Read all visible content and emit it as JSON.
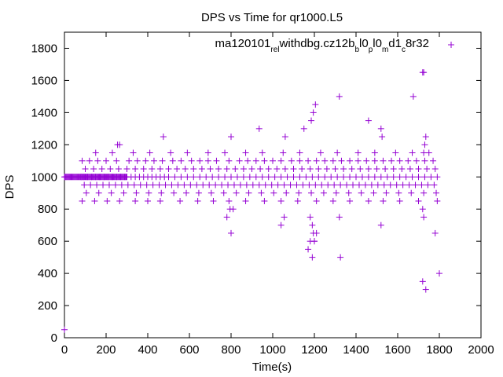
{
  "chart_data": {
    "type": "scatter",
    "title": "DPS vs Time for qr1000.L5",
    "xlabel": "Time(s)",
    "ylabel": "DPS",
    "xlim": [
      0,
      2000
    ],
    "ylim": [
      0,
      1900
    ],
    "xticks": [
      0,
      200,
      400,
      600,
      800,
      1000,
      1200,
      1400,
      1600,
      1800,
      2000
    ],
    "yticks": [
      0,
      200,
      400,
      600,
      800,
      1000,
      1200,
      1400,
      1600,
      1800
    ],
    "grid": false,
    "marker": "+",
    "color": "#9400d3",
    "legend": {
      "position": "top-right",
      "parts": [
        {
          "text": "ma120101",
          "sub": false
        },
        {
          "text": "rel",
          "sub": true
        },
        {
          "text": "withdbg.cz12b",
          "sub": false
        },
        {
          "text": "b",
          "sub": true
        },
        {
          "text": "l0",
          "sub": false
        },
        {
          "text": "p",
          "sub": true
        },
        {
          "text": "l0",
          "sub": false
        },
        {
          "text": "m",
          "sub": true
        },
        {
          "text": "d1",
          "sub": false
        },
        {
          "text": "c",
          "sub": true
        },
        {
          "text": "8r32",
          "sub": false
        }
      ]
    },
    "series": [
      {
        "name": "ma120101_rel_withdbg.cz12b_b_l0_p_l0_m_d1_c_8r32",
        "x": [
          0,
          4,
          8,
          12,
          16,
          20,
          24,
          28,
          32,
          36,
          40,
          44,
          48,
          52,
          56,
          60,
          64,
          68,
          72,
          76,
          80,
          84,
          88,
          92,
          96,
          100,
          104,
          108,
          112,
          116,
          120,
          124,
          128,
          132,
          136,
          140,
          144,
          148,
          152,
          156,
          160,
          164,
          168,
          172,
          176,
          180,
          184,
          188,
          192,
          196,
          200,
          204,
          208,
          212,
          216,
          220,
          224,
          228,
          232,
          236,
          240,
          244,
          248,
          252,
          256,
          260,
          264,
          268,
          272,
          276,
          280,
          284,
          288,
          292,
          296,
          300,
          80,
          90,
          110,
          130,
          150,
          170,
          190,
          210,
          230,
          250,
          270,
          290,
          320,
          340,
          360,
          380,
          400,
          420,
          440,
          460,
          480,
          500,
          530,
          560,
          590,
          620,
          650,
          680,
          710,
          740,
          770,
          800,
          830,
          860,
          890,
          920,
          950,
          980,
          1010,
          1040,
          1070,
          1100,
          1130,
          1160,
          1190,
          1220,
          1250,
          1280,
          1310,
          1340,
          1370,
          1400,
          1430,
          1460,
          1490,
          1520,
          1550,
          1580,
          1610,
          1640,
          1670,
          1700,
          1730,
          1760,
          1790,
          95,
          125,
          155,
          185,
          215,
          245,
          275,
          305,
          335,
          365,
          395,
          425,
          455,
          485,
          515,
          545,
          575,
          605,
          635,
          665,
          695,
          725,
          755,
          785,
          815,
          845,
          875,
          905,
          935,
          965,
          995,
          1025,
          1055,
          1085,
          1115,
          1145,
          1175,
          1205,
          1235,
          1265,
          1295,
          1325,
          1355,
          1385,
          1415,
          1445,
          1475,
          1505,
          1535,
          1565,
          1595,
          1625,
          1655,
          1685,
          1715,
          1745,
          1775,
          100,
          140,
          180,
          220,
          260,
          300,
          340,
          380,
          420,
          460,
          500,
          540,
          580,
          620,
          660,
          700,
          740,
          780,
          820,
          860,
          900,
          940,
          980,
          1020,
          1060,
          1100,
          1140,
          1180,
          1220,
          1260,
          1300,
          1340,
          1380,
          1420,
          1460,
          1500,
          1540,
          1580,
          1620,
          1660,
          1700,
          1740,
          1780,
          105,
          165,
          225,
          285,
          345,
          405,
          465,
          525,
          585,
          645,
          705,
          765,
          825,
          885,
          945,
          1005,
          1065,
          1125,
          1185,
          1245,
          1305,
          1365,
          1425,
          1485,
          1545,
          1605,
          1665,
          1725,
          1785,
          85,
          120,
          160,
          200,
          250,
          310,
          350,
          390,
          430,
          470,
          520,
          560,
          610,
          650,
          690,
          730,
          790,
          840,
          880,
          920,
          960,
          1000,
          1040,
          1090,
          1130,
          1170,
          1210,
          1250,
          1290,
          1330,
          1370,
          1410,
          1450,
          1490,
          1530,
          1570,
          1610,
          1650,
          1690,
          1730,
          1770,
          150,
          230,
          330,
          410,
          510,
          590,
          690,
          770,
          870,
          950,
          1050,
          1130,
          1230,
          1310,
          1410,
          1490,
          1590,
          1670,
          1750,
          85,
          145,
          205,
          265,
          340,
          400,
          460,
          555,
          640,
          715,
          790,
          870,
          960,
          1040,
          1120,
          1210,
          1290,
          1370,
          1460,
          1530,
          1610,
          1700,
          1790,
          255,
          265,
          475,
          800,
          935,
          1060,
          1150,
          1185,
          1195,
          1205,
          1320,
          1460,
          1520,
          1525,
          1730,
          1735,
          1725,
          795,
          810,
          1040,
          1180,
          1190,
          1210,
          1200,
          1320,
          1675,
          1720,
          1725,
          780,
          800,
          1055,
          1170,
          1180,
          1190,
          1195,
          1200,
          1325,
          1520,
          1720,
          1735,
          1780,
          0,
          1720,
          1725,
          1800
        ],
        "y": [
          1000,
          1000,
          1000,
          1000,
          1000,
          1000,
          1000,
          1000,
          1000,
          1000,
          1000,
          1000,
          1000,
          1000,
          1000,
          1000,
          1000,
          1000,
          1000,
          1000,
          1000,
          1000,
          1000,
          1000,
          1000,
          1000,
          1000,
          1000,
          1000,
          1000,
          1000,
          1000,
          1000,
          1000,
          1000,
          1000,
          1000,
          1000,
          1000,
          1000,
          1000,
          1000,
          1000,
          1000,
          1000,
          1000,
          1000,
          1000,
          1000,
          1000,
          1000,
          1000,
          1000,
          1000,
          1000,
          1000,
          1000,
          1000,
          1000,
          1000,
          1000,
          1000,
          1000,
          1000,
          1000,
          1000,
          1000,
          1000,
          1000,
          1000,
          1000,
          1000,
          1000,
          1000,
          1000,
          1000,
          1000,
          1000,
          1000,
          1000,
          1000,
          1000,
          1000,
          1000,
          1000,
          1000,
          1000,
          1000,
          1000,
          1000,
          1000,
          1000,
          1000,
          1000,
          1000,
          1000,
          1000,
          1000,
          1000,
          1000,
          1000,
          1000,
          1000,
          1000,
          1000,
          1000,
          1000,
          1000,
          1000,
          1000,
          1000,
          1000,
          1000,
          1000,
          1000,
          1000,
          1000,
          1000,
          1000,
          1000,
          1000,
          1000,
          1000,
          1000,
          1000,
          1000,
          1000,
          1000,
          1000,
          1000,
          1000,
          1000,
          1000,
          1000,
          1000,
          1000,
          1000,
          1000,
          1000,
          1000,
          1000,
          950,
          950,
          950,
          950,
          950,
          950,
          950,
          950,
          950,
          950,
          950,
          950,
          950,
          950,
          950,
          950,
          950,
          950,
          950,
          950,
          950,
          950,
          950,
          950,
          950,
          950,
          950,
          950,
          950,
          950,
          950,
          950,
          950,
          950,
          950,
          950,
          950,
          950,
          950,
          950,
          950,
          950,
          950,
          950,
          950,
          950,
          950,
          950,
          950,
          950,
          950,
          950,
          950,
          950,
          950,
          950,
          950,
          1050,
          1050,
          1050,
          1050,
          1050,
          1050,
          1050,
          1050,
          1050,
          1050,
          1050,
          1050,
          1050,
          1050,
          1050,
          1050,
          1050,
          1050,
          1050,
          1050,
          1050,
          1050,
          1050,
          1050,
          1050,
          1050,
          1050,
          1050,
          1050,
          1050,
          1050,
          1050,
          1050,
          1050,
          1050,
          1050,
          1050,
          1050,
          1050,
          1050,
          1050,
          1050,
          1050,
          900,
          900,
          900,
          900,
          900,
          900,
          900,
          900,
          900,
          900,
          900,
          900,
          900,
          900,
          900,
          900,
          900,
          900,
          900,
          900,
          900,
          900,
          900,
          900,
          900,
          900,
          900,
          900,
          900,
          1100,
          1100,
          1100,
          1100,
          1100,
          1100,
          1100,
          1100,
          1100,
          1100,
          1100,
          1100,
          1100,
          1100,
          1100,
          1100,
          1100,
          1100,
          1100,
          1100,
          1100,
          1100,
          1100,
          1100,
          1100,
          1100,
          1100,
          1100,
          1100,
          1100,
          1100,
          1100,
          1100,
          1100,
          1100,
          1100,
          1100,
          1100,
          1100,
          1100,
          1100,
          1150,
          1150,
          1150,
          1150,
          1150,
          1150,
          1150,
          1150,
          1150,
          1150,
          1150,
          1150,
          1150,
          1150,
          1150,
          1150,
          1150,
          1150,
          1150,
          850,
          850,
          850,
          850,
          850,
          850,
          850,
          850,
          850,
          850,
          850,
          850,
          850,
          850,
          850,
          850,
          850,
          850,
          850,
          850,
          850,
          850,
          850,
          1200,
          1200,
          1250,
          1250,
          1300,
          1250,
          1300,
          1350,
          1400,
          1450,
          1500,
          1350,
          1300,
          1250,
          1200,
          1250,
          1150,
          800,
          800,
          700,
          750,
          700,
          650,
          600,
          750,
          1500,
          800,
          750,
          750,
          650,
          750,
          550,
          600,
          500,
          650,
          600,
          500,
          700,
          350,
          300,
          650,
          50,
          1650,
          1650,
          400
        ]
      }
    ]
  }
}
